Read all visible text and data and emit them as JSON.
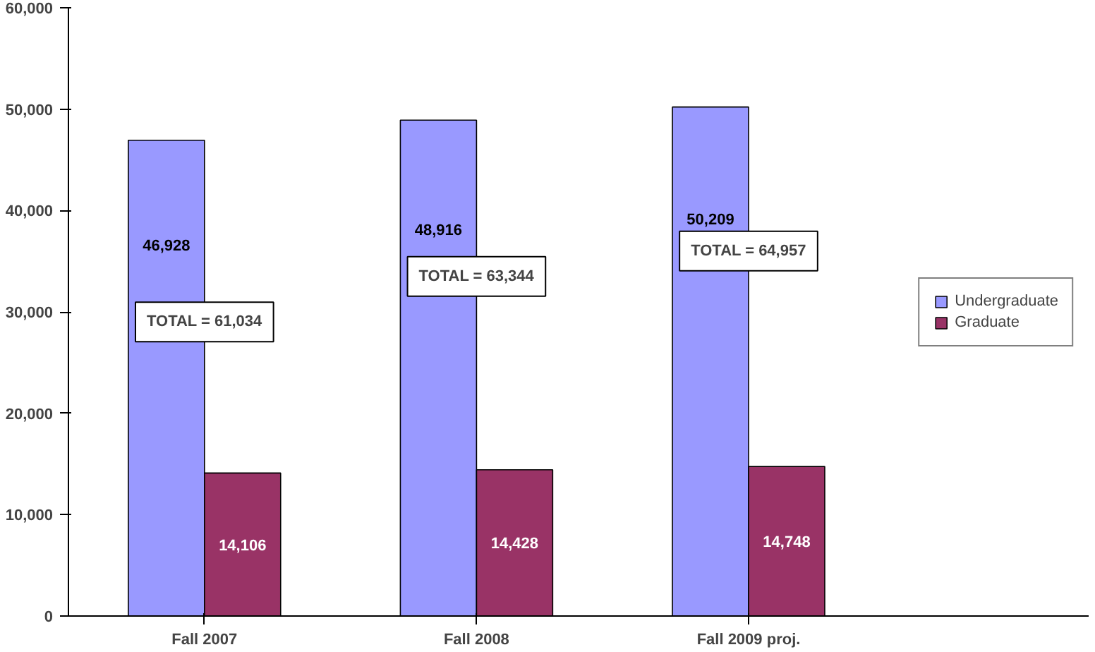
{
  "chart_data": {
    "type": "bar",
    "categories": [
      "Fall 2007",
      "Fall 2008",
      "Fall 2009 proj."
    ],
    "series": [
      {
        "name": "Undergraduate",
        "color": "#9999ff",
        "values": [
          46928,
          48916,
          50209
        ],
        "value_labels": [
          "46,928",
          "48,916",
          "50,209"
        ]
      },
      {
        "name": "Graduate",
        "color": "#993366",
        "values": [
          14106,
          14428,
          14748
        ],
        "value_labels": [
          "14,106",
          "14,428",
          "14,748"
        ]
      }
    ],
    "ylim": [
      0,
      60000
    ],
    "yticks": [
      0,
      {
        "value": 10000,
        "label": "10,000"
      },
      {
        "value": 20000,
        "label": "20,000"
      },
      {
        "value": 30000,
        "label": "30,000"
      },
      {
        "value": 40000,
        "label": "40,000"
      },
      {
        "value": 50000,
        "label": "50,000"
      },
      {
        "value": 60000,
        "label": "60,000"
      }
    ],
    "annotations": [
      {
        "text": "TOTAL = 61,034",
        "x": "Fall 2007",
        "y": 29000
      },
      {
        "text": "TOTAL = 63,344",
        "x": "Fall 2008",
        "y": 33500
      },
      {
        "text": "TOTAL = 64,957",
        "x": "Fall 2009 proj.",
        "y": 36000
      }
    ],
    "grid": false,
    "legend": "right"
  }
}
